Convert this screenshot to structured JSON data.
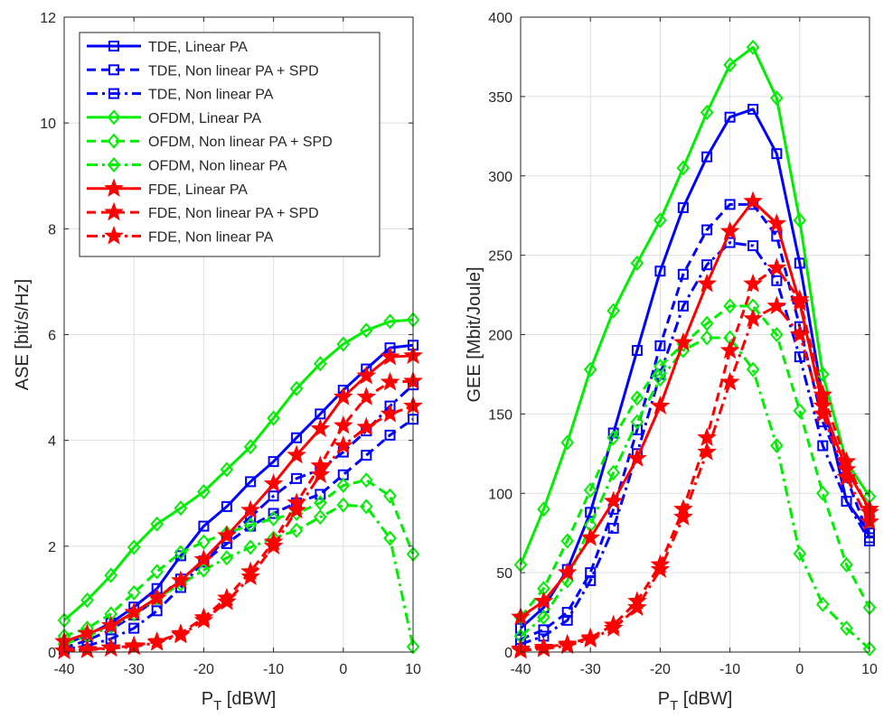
{
  "chart_data": [
    {
      "type": "line",
      "xlabel_main": "P",
      "xlabel_sub": "T",
      "xlabel_unit": " [dBW]",
      "ylabel": "ASE [bit/s/Hz]",
      "xlim": [
        -40,
        10
      ],
      "ylim": [
        0,
        12
      ],
      "xticks": [
        -40,
        -30,
        -20,
        -10,
        0,
        10
      ],
      "yticks": [
        0,
        2,
        4,
        6,
        8,
        10,
        12
      ],
      "grid": true,
      "legend_location": "top-left",
      "x": [
        -40,
        -36.8,
        -33.5,
        -30.3,
        -27.1,
        -23.9,
        -20.6,
        -17.4,
        -14.2,
        -11,
        -7.7,
        -4.5,
        -1.3,
        1.9,
        5.2,
        8.4
      ],
      "series": [
        {
          "name": "TDE, Linear PA",
          "color": "#0000ff",
          "style": "solid",
          "marker": "square",
          "x": [
            -40,
            -36.7,
            -33.3,
            -30,
            -26.7,
            -23.3,
            -20,
            -16.7,
            -13.3,
            -10,
            -6.7,
            -3.3,
            0,
            3.3,
            6.7,
            10
          ],
          "values": [
            0.15,
            0.32,
            0.55,
            0.85,
            1.2,
            1.82,
            2.38,
            2.75,
            3.22,
            3.6,
            4.05,
            4.5,
            4.95,
            5.35,
            5.75,
            5.8
          ]
        },
        {
          "name": "TDE, Non linear PA + SPD",
          "color": "#0000ff",
          "style": "dashed",
          "marker": "square",
          "x": [
            -40,
            -36.7,
            -33.3,
            -30,
            -26.7,
            -23.3,
            -20,
            -16.7,
            -13.3,
            -10,
            -6.7,
            -3.3,
            0,
            3.3,
            6.7,
            10
          ],
          "values": [
            0.08,
            0.22,
            0.42,
            0.7,
            1.0,
            1.38,
            1.7,
            2.05,
            2.38,
            2.62,
            2.82,
            2.98,
            3.35,
            3.72,
            4.1,
            4.4
          ]
        },
        {
          "name": "TDE, Non linear PA",
          "color": "#0000ff",
          "style": "dashdot",
          "marker": "square",
          "x": [
            -40,
            -36.7,
            -33.3,
            -30,
            -26.7,
            -23.3,
            -20,
            -16.7,
            -13.3,
            -10,
            -6.7,
            -3.3,
            0,
            3.3,
            6.7,
            10
          ],
          "values": [
            0.05,
            0.12,
            0.25,
            0.45,
            0.78,
            1.22,
            1.72,
            2.15,
            2.55,
            2.95,
            3.28,
            3.45,
            3.78,
            4.18,
            4.65,
            5.05
          ]
        },
        {
          "name": "OFDM, Linear PA",
          "color": "#00ee00",
          "style": "solid",
          "marker": "diamond",
          "x": [
            -40,
            -36.7,
            -33.3,
            -30,
            -26.7,
            -23.3,
            -20,
            -16.7,
            -13.3,
            -10,
            -6.7,
            -3.3,
            0,
            3.3,
            6.7,
            10
          ],
          "values": [
            0.6,
            0.98,
            1.45,
            1.98,
            2.42,
            2.72,
            3.03,
            3.45,
            3.88,
            4.42,
            4.98,
            5.45,
            5.82,
            6.08,
            6.25,
            6.28
          ]
        },
        {
          "name": "OFDM, Non linear PA + SPD",
          "color": "#00ee00",
          "style": "dashed",
          "marker": "diamond",
          "x": [
            -40,
            -36.7,
            -33.3,
            -30,
            -26.7,
            -23.3,
            -20,
            -16.7,
            -13.3,
            -10,
            -6.7,
            -3.3,
            0,
            3.3,
            6.7,
            10
          ],
          "values": [
            0.3,
            0.45,
            0.72,
            1.12,
            1.52,
            1.88,
            2.08,
            2.25,
            2.4,
            2.52,
            2.62,
            2.82,
            3.15,
            3.25,
            2.95,
            1.85
          ]
        },
        {
          "name": "OFDM, Non linear PA",
          "color": "#00ee00",
          "style": "dashdot",
          "marker": "diamond",
          "x": [
            -40,
            -36.7,
            -33.3,
            -30,
            -26.7,
            -23.3,
            -20,
            -16.7,
            -13.3,
            -10,
            -6.7,
            -3.3,
            0,
            3.3,
            6.7,
            10
          ],
          "values": [
            0.15,
            0.3,
            0.48,
            0.72,
            1.02,
            1.28,
            1.55,
            1.78,
            1.98,
            2.15,
            2.3,
            2.55,
            2.78,
            2.75,
            2.15,
            0.1
          ]
        },
        {
          "name": "FDE, Linear PA",
          "color": "#ff0000",
          "style": "solid",
          "marker": "star",
          "x": [
            -40,
            -36.7,
            -33.3,
            -30,
            -26.7,
            -23.3,
            -20,
            -16.7,
            -13.3,
            -10,
            -6.7,
            -3.3,
            0,
            3.3,
            6.7,
            10
          ],
          "values": [
            0.2,
            0.35,
            0.5,
            0.75,
            1.02,
            1.35,
            1.75,
            2.2,
            2.68,
            3.18,
            3.72,
            4.22,
            4.82,
            5.22,
            5.58,
            5.6
          ]
        },
        {
          "name": "FDE, Non linear PA + SPD",
          "color": "#ff0000",
          "style": "dashed",
          "marker": "star",
          "x": [
            -40,
            -36.7,
            -33.3,
            -30,
            -26.7,
            -23.3,
            -20,
            -16.7,
            -13.3,
            -10,
            -6.7,
            -3.3,
            0,
            3.3,
            6.7,
            10
          ],
          "values": [
            0.02,
            0.05,
            0.08,
            0.12,
            0.2,
            0.35,
            0.65,
            1.02,
            1.52,
            2.08,
            2.82,
            3.52,
            4.28,
            4.82,
            5.1,
            5.12
          ]
        },
        {
          "name": "FDE, Non linear PA",
          "color": "#ff0000",
          "style": "dashdot",
          "marker": "star",
          "x": [
            -40,
            -36.7,
            -33.3,
            -30,
            -26.7,
            -23.3,
            -20,
            -16.7,
            -13.3,
            -10,
            -6.7,
            -3.3,
            0,
            3.3,
            6.7,
            10
          ],
          "values": [
            0.02,
            0.04,
            0.07,
            0.1,
            0.18,
            0.32,
            0.6,
            0.95,
            1.42,
            2.0,
            2.68,
            3.35,
            3.9,
            4.25,
            4.5,
            4.65
          ]
        }
      ]
    },
    {
      "type": "line",
      "xlabel_main": "P",
      "xlabel_sub": "T",
      "xlabel_unit": " [dBW]",
      "ylabel": "GEE [Mbit/Joule]",
      "xlim": [
        -40,
        10
      ],
      "ylim": [
        0,
        400
      ],
      "xticks": [
        -40,
        -30,
        -20,
        -10,
        0,
        10
      ],
      "yticks": [
        0,
        50,
        100,
        150,
        200,
        250,
        300,
        350,
        400
      ],
      "grid": true,
      "series": [
        {
          "name": "TDE, Linear PA",
          "color": "#0000ff",
          "style": "solid",
          "marker": "square",
          "x": [
            -40,
            -36.7,
            -33.3,
            -30,
            -26.7,
            -23.3,
            -20,
            -16.7,
            -13.3,
            -10,
            -6.7,
            -3.3,
            0,
            3.3,
            6.7,
            10
          ],
          "values": [
            15,
            28,
            52,
            88,
            138,
            190,
            240,
            280,
            312,
            337,
            342,
            314,
            245,
            160,
            95,
            75
          ]
        },
        {
          "name": "TDE, Non linear PA + SPD",
          "color": "#0000ff",
          "style": "dashed",
          "marker": "square",
          "x": [
            -40,
            -36.7,
            -33.3,
            -30,
            -26.7,
            -23.3,
            -20,
            -16.7,
            -13.3,
            -10,
            -6.7,
            -3.3,
            0,
            3.3,
            6.7,
            10
          ],
          "values": [
            8,
            14,
            25,
            50,
            90,
            140,
            193,
            238,
            266,
            282,
            282,
            262,
            205,
            145,
            110,
            72
          ]
        },
        {
          "name": "TDE, Non linear PA",
          "color": "#0000ff",
          "style": "dashdot",
          "marker": "square",
          "x": [
            -40,
            -36.7,
            -33.3,
            -30,
            -26.7,
            -23.3,
            -20,
            -16.7,
            -13.3,
            -10,
            -6.7,
            -3.3,
            0,
            3.3,
            6.7,
            10
          ],
          "values": [
            5,
            10,
            20,
            45,
            78,
            125,
            175,
            218,
            244,
            258,
            256,
            234,
            186,
            130,
            95,
            70
          ]
        },
        {
          "name": "OFDM, Linear PA",
          "color": "#00ee00",
          "style": "solid",
          "marker": "diamond",
          "x": [
            -40,
            -36.7,
            -33.3,
            -30,
            -26.7,
            -23.3,
            -20,
            -16.7,
            -13.3,
            -10,
            -6.7,
            -3.3,
            0,
            3.3,
            6.7,
            10
          ],
          "values": [
            55,
            90,
            132,
            178,
            215,
            245,
            272,
            305,
            340,
            370,
            381,
            349,
            272,
            175,
            120,
            98
          ]
        },
        {
          "name": "OFDM, Non linear PA + SPD",
          "color": "#00ee00",
          "style": "dashed",
          "marker": "diamond",
          "x": [
            -40,
            -36.7,
            -33.3,
            -30,
            -26.7,
            -23.3,
            -20,
            -16.7,
            -13.3,
            -10,
            -6.7,
            -3.3,
            0,
            3.3,
            6.7,
            10
          ],
          "values": [
            22,
            40,
            70,
            102,
            135,
            160,
            180,
            194,
            207,
            218,
            218,
            200,
            152,
            100,
            55,
            28
          ]
        },
        {
          "name": "OFDM, Non linear PA",
          "color": "#00ee00",
          "style": "dashdot",
          "marker": "diamond",
          "x": [
            -40,
            -36.7,
            -33.3,
            -30,
            -26.7,
            -23.3,
            -20,
            -16.7,
            -13.3,
            -10,
            -6.7,
            -3.3,
            0,
            3.3,
            6.7,
            10
          ],
          "values": [
            10,
            22,
            45,
            80,
            113,
            145,
            172,
            190,
            198,
            198,
            178,
            130,
            62,
            30,
            15,
            2
          ]
        },
        {
          "name": "FDE, Linear PA",
          "color": "#ff0000",
          "style": "solid",
          "marker": "star",
          "x": [
            -40,
            -36.7,
            -33.3,
            -30,
            -26.7,
            -23.3,
            -20,
            -16.7,
            -13.3,
            -10,
            -6.7,
            -3.3,
            0,
            3.3,
            6.7,
            10
          ],
          "values": [
            22,
            32,
            50,
            72,
            95,
            122,
            155,
            195,
            232,
            265,
            284,
            270,
            220,
            155,
            115,
            90
          ]
        },
        {
          "name": "FDE, Non linear PA + SPD",
          "color": "#ff0000",
          "style": "dashed",
          "marker": "star",
          "x": [
            -40,
            -36.7,
            -33.3,
            -30,
            -26.7,
            -23.3,
            -20,
            -16.7,
            -13.3,
            -10,
            -6.7,
            -3.3,
            0,
            3.3,
            6.7,
            10
          ],
          "values": [
            2,
            3,
            5,
            9,
            17,
            32,
            55,
            90,
            135,
            190,
            232,
            242,
            222,
            162,
            120,
            88
          ]
        },
        {
          "name": "FDE, Non linear PA",
          "color": "#ff0000",
          "style": "dashdot",
          "marker": "star",
          "x": [
            -40,
            -36.7,
            -33.3,
            -30,
            -26.7,
            -23.3,
            -20,
            -16.7,
            -13.3,
            -10,
            -6.7,
            -3.3,
            0,
            3.3,
            6.7,
            10
          ],
          "values": [
            1,
            2,
            4,
            8,
            15,
            28,
            52,
            85,
            126,
            170,
            210,
            218,
            200,
            150,
            110,
            82
          ]
        }
      ]
    }
  ]
}
